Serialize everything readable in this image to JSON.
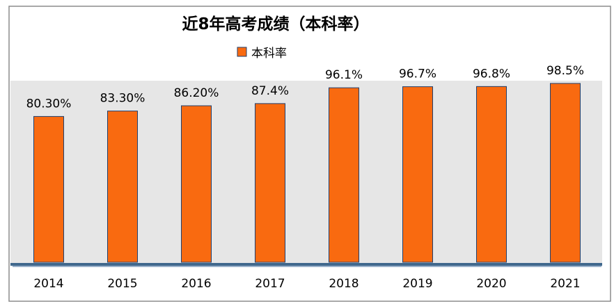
{
  "chart_data": {
    "type": "bar",
    "title": "近8年高考成绩（本科率）",
    "legend": {
      "label": "本科率",
      "position": "top"
    },
    "categories": [
      "2014",
      "2015",
      "2016",
      "2017",
      "2018",
      "2019",
      "2020",
      "2021"
    ],
    "values": [
      80.3,
      83.3,
      86.2,
      87.4,
      96.1,
      96.7,
      96.8,
      98.5
    ],
    "data_labels": [
      "80.30%",
      "83.30%",
      "86.20%",
      "87.4%",
      "96.1%",
      "96.7%",
      "96.8%",
      "98.5%"
    ],
    "ylim": [
      0,
      100
    ],
    "xlabel": "",
    "ylabel": "",
    "colors": {
      "bar": "#F96A10",
      "bar_edge": "#1F3F6E",
      "plot_bg": "#E6E6E6",
      "floor": "#1F4E79"
    }
  }
}
